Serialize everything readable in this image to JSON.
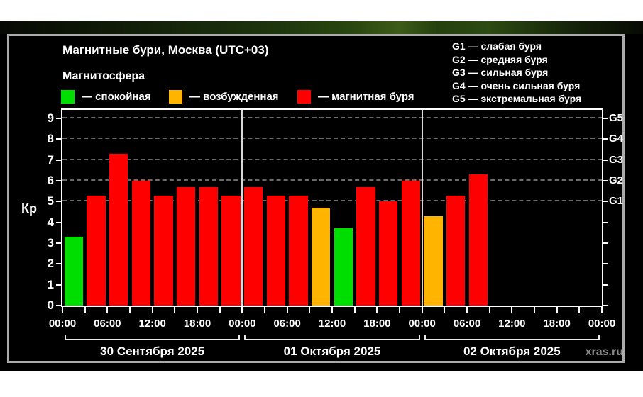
{
  "header": {
    "title": "Магнитные бури, Москва (UTC+03)",
    "subtitle": "Магнитосфера",
    "legend": [
      {
        "name": "quiet",
        "label": "— спокойная",
        "color": "#00dd00"
      },
      {
        "name": "excited",
        "label": "— возбужденная",
        "color": "#ffb400"
      },
      {
        "name": "storm",
        "label": "— магнитная буря",
        "color": "#ff0000"
      }
    ],
    "g_legend": [
      "G1 — слабая буря",
      "G2 — средняя буря",
      "G3 — сильная буря",
      "G4 — очень сильная буря",
      "G5 — экстремальная буря"
    ]
  },
  "watermark": "xras.ru",
  "chart_data": {
    "type": "bar",
    "title": "Магнитные бури, Москва (UTC+03)",
    "ylabel": "Кр",
    "ylim": [
      0,
      9.4
    ],
    "yticks": [
      0,
      1,
      2,
      3,
      4,
      5,
      6,
      7,
      8,
      9
    ],
    "gridlines_at_kp": [
      5,
      6,
      7,
      8,
      9
    ],
    "right_axis": [
      {
        "label": "G1",
        "kp": 5
      },
      {
        "label": "G2",
        "kp": 6
      },
      {
        "label": "G3",
        "kp": 7
      },
      {
        "label": "G4",
        "kp": 8
      },
      {
        "label": "G5",
        "kp": 9
      }
    ],
    "x_time_labels": [
      "00:00",
      "06:00",
      "12:00",
      "18:00",
      "00:00",
      "06:00",
      "12:00",
      "18:00",
      "00:00",
      "06:00",
      "12:00",
      "18:00",
      "00:00"
    ],
    "hours_per_slot": 3,
    "palette": {
      "green": "#00dd00",
      "orange": "#ffb400",
      "red": "#ff0000"
    },
    "days": [
      {
        "date": "30 Сентября 2025",
        "values": [
          3.3,
          5.3,
          7.3,
          6.0,
          5.3,
          5.7,
          5.7,
          5.3
        ],
        "colors": [
          "green",
          "red",
          "red",
          "red",
          "red",
          "red",
          "red",
          "red"
        ]
      },
      {
        "date": "01 Октября 2025",
        "values": [
          5.7,
          5.3,
          5.3,
          4.7,
          3.7,
          5.7,
          5.0,
          6.0
        ],
        "colors": [
          "red",
          "red",
          "red",
          "orange",
          "green",
          "red",
          "red",
          "red"
        ]
      },
      {
        "date": "02 Октября 2025",
        "values": [
          4.3,
          5.3,
          6.3,
          null,
          null,
          null,
          null,
          null
        ],
        "colors": [
          "orange",
          "red",
          "red",
          null,
          null,
          null,
          null,
          null
        ]
      }
    ]
  }
}
